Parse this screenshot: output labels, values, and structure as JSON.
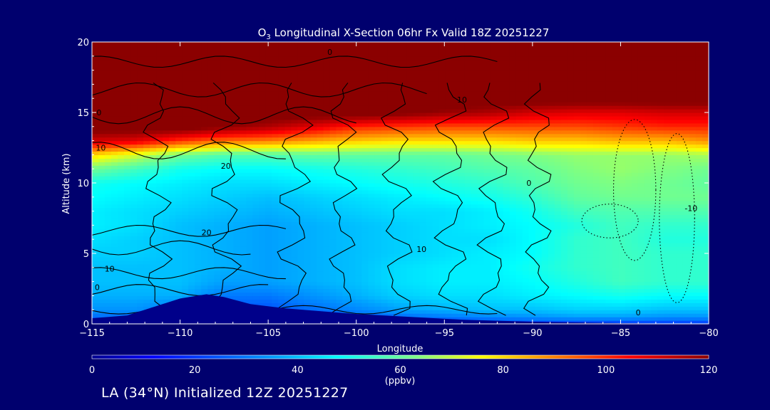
{
  "chart_data": {
    "type": "heatmap",
    "title": "O3 Longitudinal X-Section 06hr  Fx Valid 18Z 20251227",
    "title_parts": {
      "pre": "O",
      "sub": "3",
      "post": " Longitudinal X-Section 06hr  Fx Valid 18Z 20251227"
    },
    "xlabel": "Longitude",
    "ylabel": "Altitude (km)",
    "xlim": [
      -115,
      -80
    ],
    "ylim": [
      0,
      20
    ],
    "x_ticks": [
      -115,
      -110,
      -105,
      -100,
      -95,
      -90,
      -85,
      -80
    ],
    "x_tick_labels": [
      "−115",
      "−110",
      "−105",
      "−100",
      "−95",
      "−90",
      "−85",
      "−80"
    ],
    "y_ticks": [
      0,
      5,
      10,
      15,
      20
    ],
    "y_tick_labels": [
      "0",
      "5",
      "10",
      "15",
      "20"
    ],
    "colorbar": {
      "range": [
        0,
        120
      ],
      "ticks": [
        0,
        20,
        40,
        60,
        80,
        100,
        120
      ],
      "tick_labels": [
        "0",
        "20",
        "40",
        "60",
        "80",
        "100",
        "120"
      ],
      "unit_label": "(ppbv)"
    },
    "field": {
      "description_units": "ppbv",
      "x_grid": [
        -115,
        -112.5,
        -110,
        -107.5,
        -105,
        -102.5,
        -100,
        -97.5,
        -95,
        -92.5,
        -90,
        -87.5,
        -85,
        -82.5,
        -80
      ],
      "y_grid": [
        0,
        0.5,
        1,
        2,
        3,
        4,
        5,
        6,
        7,
        8,
        9,
        10,
        11,
        12,
        13,
        14,
        15,
        16,
        17,
        18,
        19,
        20
      ],
      "values": [
        [
          20,
          20,
          20,
          20,
          20,
          20,
          20,
          20,
          20,
          20,
          20,
          20,
          20,
          20,
          20
        ],
        [
          28,
          28,
          22,
          22,
          22,
          24,
          26,
          28,
          30,
          32,
          34,
          36,
          36,
          34,
          34
        ],
        [
          34,
          34,
          28,
          24,
          24,
          28,
          32,
          36,
          38,
          40,
          40,
          42,
          42,
          40,
          40
        ],
        [
          38,
          38,
          38,
          30,
          30,
          34,
          38,
          42,
          44,
          44,
          46,
          48,
          50,
          48,
          48
        ],
        [
          40,
          40,
          40,
          36,
          36,
          38,
          40,
          44,
          46,
          46,
          48,
          52,
          56,
          54,
          54
        ],
        [
          40,
          40,
          40,
          38,
          36,
          38,
          40,
          44,
          46,
          46,
          50,
          54,
          56,
          54,
          54
        ],
        [
          42,
          42,
          40,
          38,
          36,
          38,
          40,
          42,
          44,
          46,
          48,
          54,
          56,
          54,
          54
        ],
        [
          44,
          42,
          40,
          38,
          36,
          38,
          40,
          42,
          44,
          44,
          48,
          54,
          56,
          52,
          52
        ],
        [
          46,
          44,
          40,
          38,
          36,
          38,
          40,
          42,
          44,
          46,
          48,
          52,
          56,
          54,
          54
        ],
        [
          46,
          44,
          42,
          40,
          38,
          40,
          42,
          44,
          44,
          46,
          50,
          56,
          58,
          58,
          58
        ],
        [
          48,
          46,
          44,
          42,
          40,
          42,
          44,
          46,
          48,
          50,
          54,
          60,
          62,
          62,
          62
        ],
        [
          50,
          48,
          46,
          44,
          44,
          46,
          48,
          50,
          52,
          54,
          58,
          62,
          64,
          62,
          60
        ],
        [
          62,
          56,
          50,
          48,
          48,
          50,
          52,
          54,
          56,
          58,
          60,
          64,
          66,
          64,
          62
        ],
        [
          80,
          72,
          62,
          58,
          58,
          60,
          60,
          60,
          60,
          62,
          64,
          66,
          66,
          66,
          68
        ],
        [
          110,
          108,
          98,
          92,
          90,
          86,
          82,
          80,
          80,
          80,
          82,
          82,
          84,
          84,
          88
        ],
        [
          125,
          125,
          125,
          120,
          115,
          108,
          100,
          98,
          96,
          96,
          96,
          96,
          98,
          100,
          100
        ],
        [
          125,
          125,
          125,
          125,
          125,
          125,
          125,
          122,
          118,
          115,
          110,
          108,
          108,
          110,
          110
        ],
        [
          125,
          125,
          125,
          125,
          125,
          125,
          125,
          125,
          125,
          125,
          125,
          125,
          125,
          125,
          125
        ],
        [
          125,
          125,
          125,
          125,
          125,
          125,
          125,
          125,
          125,
          125,
          125,
          125,
          125,
          125,
          125
        ],
        [
          125,
          125,
          125,
          125,
          125,
          125,
          125,
          125,
          125,
          125,
          125,
          125,
          125,
          125,
          125
        ],
        [
          125,
          125,
          125,
          125,
          125,
          125,
          125,
          125,
          125,
          125,
          125,
          125,
          125,
          125,
          125
        ],
        [
          125,
          125,
          125,
          125,
          125,
          125,
          125,
          125,
          125,
          125,
          125,
          125,
          125,
          125,
          125
        ]
      ]
    },
    "terrain": {
      "points": [
        [
          -115,
          0.4
        ],
        [
          -113,
          0.6
        ],
        [
          -111.5,
          1.2
        ],
        [
          -110,
          1.8
        ],
        [
          -108.5,
          2.1
        ],
        [
          -107.5,
          1.9
        ],
        [
          -106,
          1.4
        ],
        [
          -104,
          1.1
        ],
        [
          -102,
          0.9
        ],
        [
          -100,
          0.7
        ],
        [
          -97,
          0.5
        ],
        [
          -94,
          0.3
        ],
        [
          -90,
          0.15
        ],
        [
          -85,
          0.05
        ],
        [
          -80,
          0.0
        ]
      ]
    },
    "contour_labels": [
      {
        "text": "0",
        "x": -101.5,
        "y": 19.1
      },
      {
        "text": "10",
        "x": -94,
        "y": 15.7
      },
      {
        "text": "10",
        "x": -114.5,
        "y": 12.3
      },
      {
        "text": "20",
        "x": -107.4,
        "y": 11.0
      },
      {
        "text": "0",
        "x": -114.6,
        "y": 14.8
      },
      {
        "text": "20",
        "x": -108.5,
        "y": 6.3
      },
      {
        "text": "10",
        "x": -96.3,
        "y": 5.1
      },
      {
        "text": "10",
        "x": -114,
        "y": 3.7
      },
      {
        "text": "0",
        "x": -114.7,
        "y": 2.4
      },
      {
        "text": "0",
        "x": -90.2,
        "y": 9.8
      },
      {
        "text": "0",
        "x": -84,
        "y": 0.6
      },
      {
        "text": "-10",
        "x": -81,
        "y": 8.0
      }
    ]
  },
  "footer_text": "LA (34°N) Initialized 12Z 20251227"
}
